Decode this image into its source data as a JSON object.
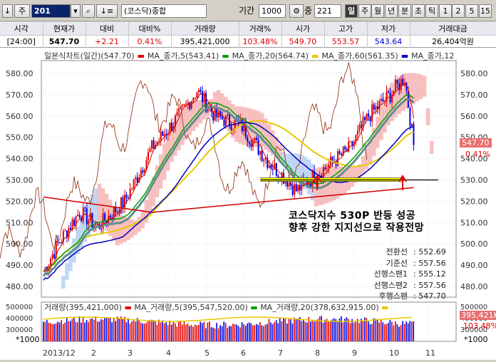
{
  "toolbar": {
    "code": "201",
    "name": "(코스닥)종합",
    "period_label": "기간",
    "period_value": "1000",
    "zoom_label": "중",
    "zoom_value": "221",
    "intervals": [
      "일",
      "주",
      "월",
      "년",
      "분",
      "초",
      "틱",
      "1",
      "2",
      "5",
      "15"
    ],
    "active_interval": "일"
  },
  "quote": {
    "headers": [
      "시각",
      "현재가",
      "대비",
      "대비%",
      "거래량",
      "거래%",
      "시가",
      "고가",
      "저가",
      "거래대금"
    ],
    "values": [
      "[24:00]",
      "547.70",
      "+2.21",
      "0.41%",
      "395,421,000",
      "103.48%",
      "549.70",
      "553.57",
      "543.64",
      "26,404억원"
    ]
  },
  "legend": {
    "main": "일본식차트(일간)(547.70)",
    "ma5": "MA_종가,5(543.41)",
    "ma20": "MA_종가,20(564.74)",
    "ma60": "MA_종가,60(561.35)",
    "ma120": "MA_종가,12",
    "volume": "거래량(395,421,000)",
    "vma5": "MA_거래량,5(395,547,520.00)",
    "vma20": "MA_거래량,20(378,632,915.00)"
  },
  "annotation": {
    "line1": "코스닥지수 530P 반등 성공",
    "line2": "향후 강한 지지선으로 작용전망"
  },
  "ichimoku": [
    {
      "key": "전환선",
      "value": ": 552.69"
    },
    {
      "key": "기준선",
      "value": ": 557.56"
    },
    {
      "key": "선행스팬1",
      "value": ": 555.12"
    },
    {
      "key": "선행스팬2",
      "value": ": 557.56"
    },
    {
      "key": "후행스팬",
      "value": ": 547.70"
    }
  ],
  "side": {
    "price_tag": "547.70",
    "pct_tag": "0.41%",
    "vol_tag": "395,421K",
    "vol_pct": "103.48%",
    "unit_left": "*1000",
    "unit_right": "*1000"
  },
  "chart_data": {
    "type": "candlestick",
    "price_axis": [
      580,
      570,
      560,
      550,
      540,
      530,
      520,
      510,
      500,
      490,
      480
    ],
    "volume_axis": [
      500000,
      400000,
      300000
    ],
    "x_labels": [
      "2013/12",
      "2",
      "3",
      "4",
      "5",
      "6",
      "7",
      "8",
      "9",
      "10",
      "11"
    ],
    "support_level": 530,
    "colors": {
      "up": "#e00000",
      "down": "#0000e0",
      "ma5": "#e00000",
      "ma20": "#00a000",
      "ma60": "#e8c800",
      "ma120": "#0000c0",
      "cloud_up": "#f4a6a6",
      "cloud_down": "#a6c8f0",
      "support": "#ffff00"
    }
  }
}
